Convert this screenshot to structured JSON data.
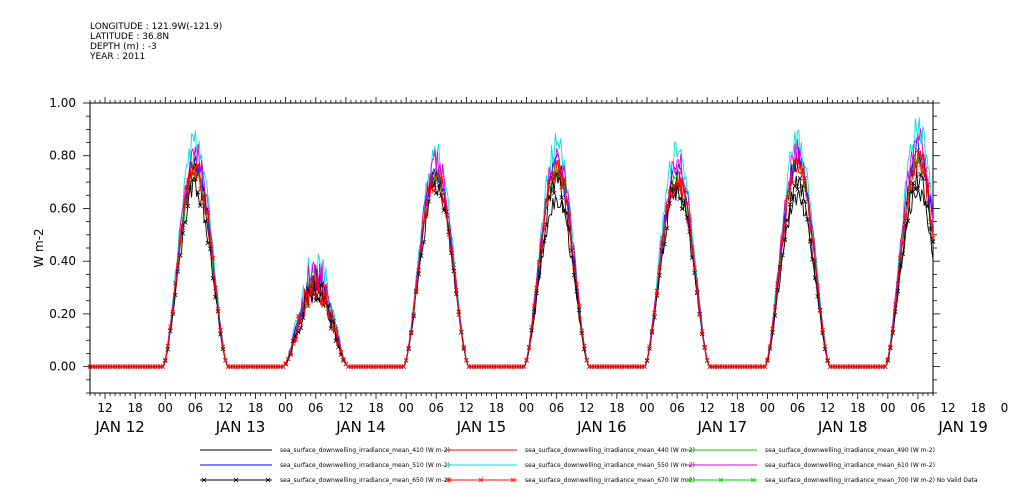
{
  "header": {
    "longitude": "LONGITUDE : 121.9W(-121.9)",
    "latitude": "LATITUDE : 36.8N",
    "depth": "DEPTH (m) : -3",
    "year": "YEAR : 2011"
  },
  "chart_data": {
    "type": "line",
    "ylabel": "W m-2",
    "ylim": [
      -0.1,
      1.0
    ],
    "yticks": [
      0.0,
      0.2,
      0.4,
      0.6,
      0.8,
      1.0
    ],
    "ytick_labels": [
      "0.00",
      "0.20",
      "0.40",
      "0.60",
      "0.80",
      "1.00"
    ],
    "xlim_hours": [
      -3,
      165
    ],
    "x_hour_labels": [
      "12",
      "18",
      "00",
      "06",
      "12",
      "18",
      "00",
      "06",
      "12",
      "18",
      "00",
      "06",
      "12",
      "18",
      "00",
      "06",
      "12",
      "18",
      "00",
      "06",
      "12",
      "18",
      "00",
      "06",
      "12",
      "18",
      "00",
      "06",
      "12",
      "18",
      "00",
      "06"
    ],
    "x_day_labels": [
      "JAN 12",
      "JAN 13",
      "JAN 14",
      "JAN 15",
      "JAN 16",
      "JAN 17",
      "JAN 18",
      "JAN 19"
    ],
    "day_peak_hour": [
      18,
      42,
      66,
      90,
      114,
      138,
      162
    ],
    "series": [
      {
        "name": "sea_surface_downwelling_irradiance_mean_410 (W m-2)",
        "color": "#000000",
        "marker": "none",
        "daily_peak": [
          0.78,
          0.36,
          0.76,
          0.68,
          0.74,
          0.69,
          0.72
        ]
      },
      {
        "name": "sea_surface_downwelling_irradiance_mean_440 (W m-2)",
        "color": "#ff0000",
        "marker": "none",
        "daily_peak": [
          0.79,
          0.37,
          0.77,
          0.79,
          0.75,
          0.81,
          0.83
        ]
      },
      {
        "name": "sea_surface_downwelling_irradiance_mean_490 (W m-2)",
        "color": "#00cc00",
        "marker": "none",
        "daily_peak": [
          0.8,
          0.38,
          0.78,
          0.8,
          0.76,
          0.82,
          0.85
        ]
      },
      {
        "name": "sea_surface_downwelling_irradiance_mean_510 (W m-2)",
        "color": "#0000ff",
        "marker": "none",
        "daily_peak": [
          0.83,
          0.4,
          0.8,
          0.82,
          0.79,
          0.84,
          0.88
        ]
      },
      {
        "name": "sea_surface_downwelling_irradiance_mean_550 (W m-2)",
        "color": "#00dddd",
        "marker": "none",
        "daily_peak": [
          0.91,
          0.47,
          0.86,
          0.89,
          0.87,
          0.91,
          0.96
        ]
      },
      {
        "name": "sea_surface_downwelling_irradiance_mean_610 (W m-2)",
        "color": "#dd00dd",
        "marker": "none",
        "daily_peak": [
          0.86,
          0.43,
          0.83,
          0.85,
          0.83,
          0.87,
          0.92
        ]
      },
      {
        "name": "sea_surface_downwelling_irradiance_mean_650 (W m-2)",
        "color": "#000000",
        "marker": "x",
        "daily_peak": [
          0.72,
          0.34,
          0.72,
          0.74,
          0.71,
          0.73,
          0.76
        ]
      },
      {
        "name": "sea_surface_downwelling_irradiance_mean_670 (W m-2)",
        "color": "#ff0000",
        "marker": "x",
        "daily_peak": [
          0.8,
          0.38,
          0.76,
          0.8,
          0.76,
          0.81,
          0.84
        ]
      },
      {
        "name": "sea_surface_downwelling_irradiance_mean_700 (W m-2) No Valid Data",
        "color": "#00cc00",
        "marker": "x",
        "daily_peak": []
      }
    ]
  }
}
